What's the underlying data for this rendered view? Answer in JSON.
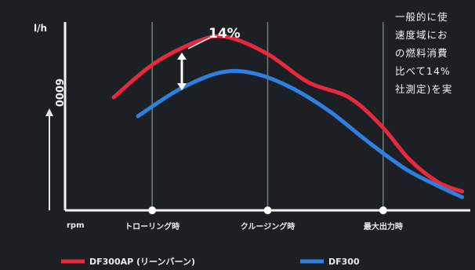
{
  "chart_data": {
    "type": "line",
    "title": "",
    "xlabel": "rpm",
    "ylabel": "l/h",
    "y_tick_label": "6000",
    "x": [
      "トローリング時",
      "クルージング時",
      "最大出力時"
    ],
    "series": [
      {
        "name": "DF300AP (リーンバーン)",
        "color": "#e8283c",
        "values": [
          [
            0.12,
            0.6
          ],
          [
            0.22,
            0.78
          ],
          [
            0.33,
            0.9
          ],
          [
            0.4,
            0.92
          ],
          [
            0.5,
            0.83
          ],
          [
            0.6,
            0.68
          ],
          [
            0.7,
            0.6
          ],
          [
            0.78,
            0.45
          ],
          [
            0.85,
            0.27
          ],
          [
            0.92,
            0.15
          ],
          [
            0.98,
            0.1
          ]
        ]
      },
      {
        "name": "DF300",
        "color": "#2f7fe0",
        "values": [
          [
            0.18,
            0.5
          ],
          [
            0.28,
            0.64
          ],
          [
            0.38,
            0.73
          ],
          [
            0.46,
            0.73
          ],
          [
            0.55,
            0.66
          ],
          [
            0.65,
            0.53
          ],
          [
            0.75,
            0.36
          ],
          [
            0.84,
            0.22
          ],
          [
            0.92,
            0.13
          ],
          [
            0.98,
            0.07
          ]
        ]
      }
    ],
    "annotation": "14%",
    "xlim": [
      0,
      1
    ],
    "ylim": [
      0,
      1
    ],
    "grid": "vertical"
  },
  "note_lines": [
    "一般的に使",
    "速度域にお",
    "の燃料消費",
    "比べて14%",
    "社測定)を実"
  ],
  "colors": {
    "background": "#1c1f24",
    "axis": "#f0f0f0",
    "grid": "#6f7f77"
  }
}
